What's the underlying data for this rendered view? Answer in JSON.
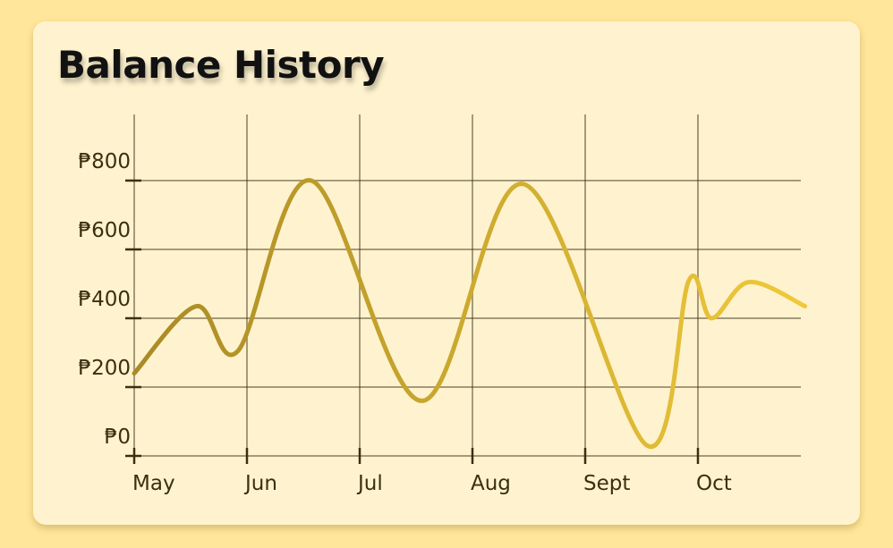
{
  "title": "Balance History",
  "colors": {
    "background": "#ffe69a",
    "card": "#fff3cf",
    "gradient_start": "#a98a24",
    "gradient_end": "#f0c93a"
  },
  "chart_data": {
    "type": "line",
    "title": "Balance History",
    "x_tick_labels": [
      "May",
      "Jun",
      "Jul",
      "Aug",
      "Sept",
      "Oct"
    ],
    "y_tick_labels": [
      "₱0",
      "₱200",
      "₱400",
      "₱600",
      "₱800"
    ],
    "ylim": [
      0,
      800
    ],
    "xlim": [
      0,
      6
    ],
    "grid": true,
    "series": [
      {
        "points": [
          [
            0.0,
            240
          ],
          [
            0.55,
            435
          ],
          [
            0.92,
            305
          ],
          [
            1.57,
            800
          ],
          [
            2.55,
            160
          ],
          [
            3.45,
            790
          ],
          [
            4.55,
            30
          ],
          [
            4.92,
            510
          ],
          [
            5.12,
            400
          ],
          [
            5.45,
            505
          ],
          [
            5.95,
            435
          ]
        ]
      }
    ]
  }
}
